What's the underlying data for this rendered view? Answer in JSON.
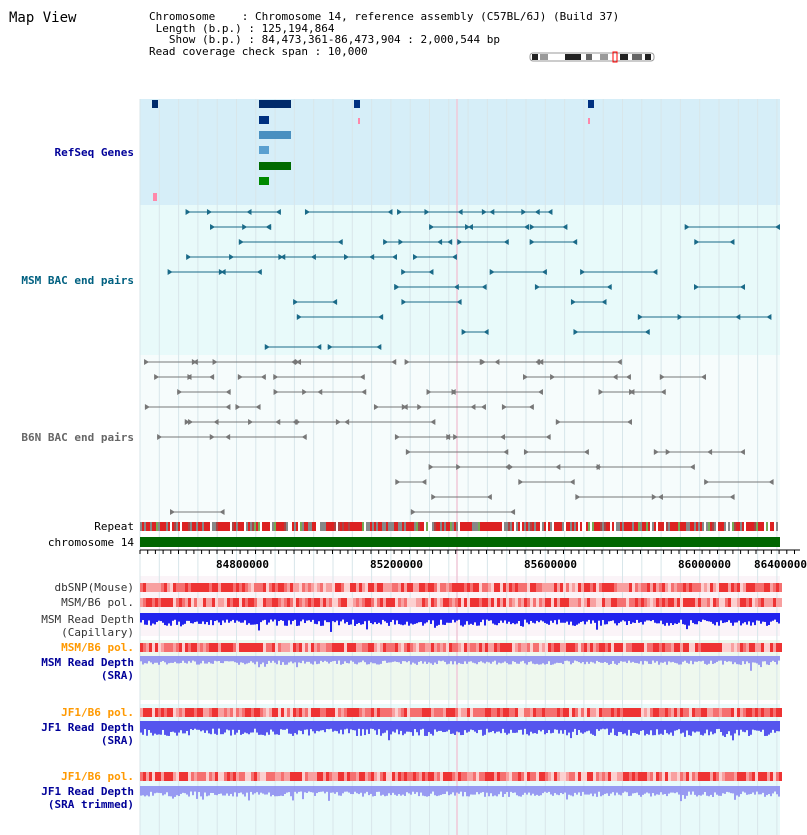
{
  "header": {
    "title": "Map View",
    "chromosome_label": "Chromosome",
    "chromosome_value": "Chromosome 14, reference assembly (C57BL/6J) (Build 37)",
    "length_label": "Length (b.p.)",
    "length_value": "125,194,864",
    "show_label": "Show (b.p.)",
    "show_value": "84,473,361-86,473,904 : 2,000,544 bp",
    "coverage_label": "Read coverage check span",
    "coverage_value": "10,000"
  },
  "tracks": {
    "refseq": {
      "label": "RefSeq Genes",
      "color": "#000099"
    },
    "msm_bac": {
      "label": "MSM BAC end pairs",
      "color": "#006080"
    },
    "b6n_bac": {
      "label": "B6N BAC end pairs",
      "color": "#666666"
    },
    "repeat": {
      "label": "Repeat"
    },
    "chromosome": {
      "label": "chromosome 14"
    },
    "dbsnp": {
      "label": "dbSNP(Mouse)"
    },
    "msm_b6_pol": {
      "label": "MSM/B6 pol."
    },
    "msm_depth_cap": {
      "label_line1": "MSM Read Depth",
      "label_line2": "(Capillary)"
    },
    "msm_b6_pol_sra": {
      "label": "MSM/B6 pol.",
      "color": "#ff9900"
    },
    "msm_depth_sra": {
      "label_line1": "MSM Read Depth",
      "label_line2": "(SRA)",
      "color": "#000099"
    },
    "jf1_b6_pol": {
      "label": "JF1/B6 pol.",
      "color": "#ff9900"
    },
    "jf1_depth_sra": {
      "label_line1": "JF1 Read Depth",
      "label_line2": "(SRA)",
      "color": "#000099"
    },
    "jf1_b6_pol_trim": {
      "label": "JF1/B6 pol.",
      "color": "#ff9900"
    },
    "jf1_depth_trim": {
      "label_line1": "JF1 Read Depth",
      "label_line2": "(SRA trimmed)",
      "color": "#000099"
    }
  },
  "ruler": {
    "ticks": [
      "84800000",
      "85200000",
      "85600000",
      "86000000",
      "86400000"
    ]
  },
  "colors": {
    "refseq_bg": "#d6eef8",
    "bac_bg": "#e8fafa",
    "read_bg": "#eef8ee",
    "chromosome_bar": "#006600",
    "depth_blue": "#2222ee",
    "depth_light": "#8888f0",
    "pol_red": "#ee3333"
  }
}
